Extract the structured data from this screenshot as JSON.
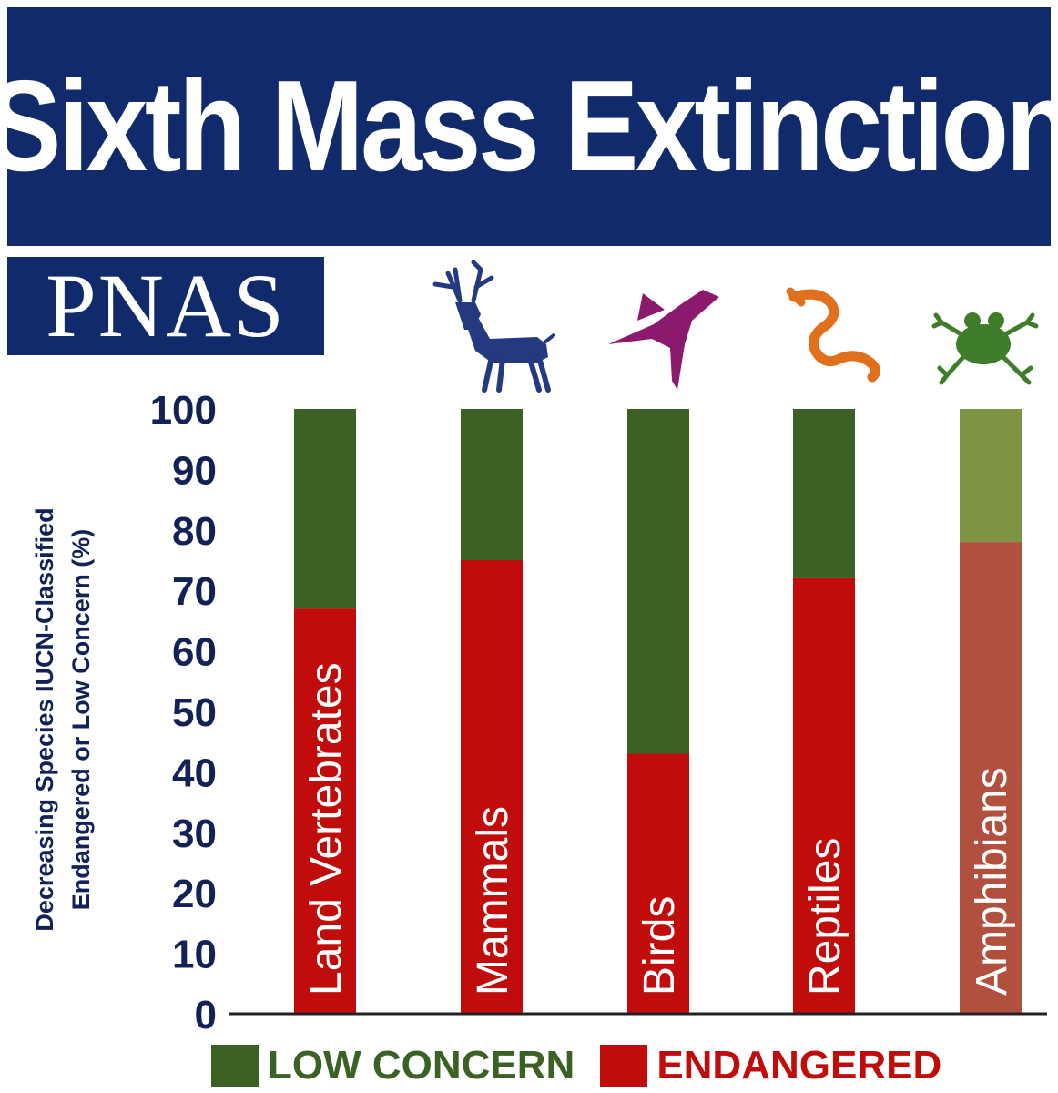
{
  "header": {
    "title": "Sixth Mass Extinction",
    "badge": "PNAS"
  },
  "colors": {
    "banner": "#102a6b",
    "low_concern": "#3b6125",
    "endangered": "#c10c0c",
    "low_concern_amphibians": "#7f9443",
    "endangered_amphibians": "#b25040",
    "axis_text": "#122157"
  },
  "icons": [
    {
      "name": "deer-icon",
      "color": "#24397f"
    },
    {
      "name": "bird-icon",
      "color": "#8b1a6f"
    },
    {
      "name": "snake-icon",
      "color": "#e0701c"
    },
    {
      "name": "frog-icon",
      "color": "#3f7d2b"
    }
  ],
  "chart_data": {
    "type": "bar",
    "stacked": true,
    "categories": [
      "Land Vertebrates",
      "Mammals",
      "Birds",
      "Reptiles",
      "Amphibians"
    ],
    "series": [
      {
        "name": "ENDANGERED",
        "values": [
          67,
          75,
          43,
          72,
          78
        ]
      },
      {
        "name": "LOW CONCERN",
        "values": [
          33,
          25,
          57,
          28,
          22
        ]
      }
    ],
    "ylabel_lines": [
      "Decreasing Species IUCN-Classified",
      "Endangered or Low Concern (%)"
    ],
    "ylim": [
      0,
      100
    ],
    "yticks": [
      0,
      10,
      20,
      30,
      40,
      50,
      60,
      70,
      80,
      90,
      100
    ],
    "legend": [
      {
        "label": "LOW CONCERN",
        "color": "#3b6125"
      },
      {
        "label": "ENDANGERED",
        "color": "#c10c0c"
      }
    ],
    "legend_position": "bottom",
    "grid": false
  }
}
